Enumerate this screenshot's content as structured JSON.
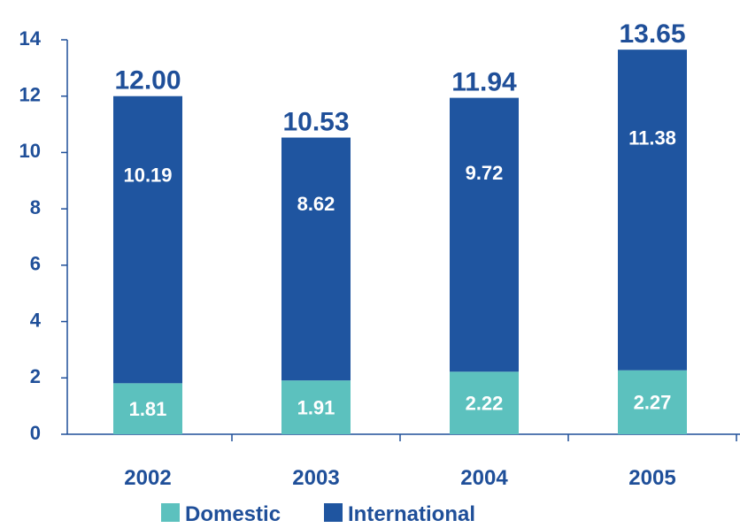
{
  "chart_data": {
    "type": "bar",
    "stacked": true,
    "categories": [
      "2002",
      "2003",
      "2004",
      "2005"
    ],
    "series": [
      {
        "name": "Domestic",
        "values": [
          1.81,
          1.91,
          2.22,
          2.27
        ],
        "labels": [
          "1.81",
          "1.91",
          "2.22",
          "2.27"
        ],
        "color": "#5cc1be"
      },
      {
        "name": "International",
        "values": [
          10.19,
          8.62,
          9.72,
          11.38
        ],
        "labels": [
          "10.19",
          "8.62",
          "9.72",
          "11.38"
        ],
        "color": "#1f55a0"
      }
    ],
    "totals": [
      "12.00",
      "10.53",
      "11.94",
      "13.65"
    ],
    "ylim": [
      0,
      14
    ],
    "yticks": [
      "0",
      "2",
      "4",
      "6",
      "8",
      "10",
      "12",
      "14"
    ],
    "title": "",
    "xlabel": "",
    "ylabel": "",
    "grid": false,
    "legend": "bottom",
    "axis_color": "#1f4f99"
  }
}
